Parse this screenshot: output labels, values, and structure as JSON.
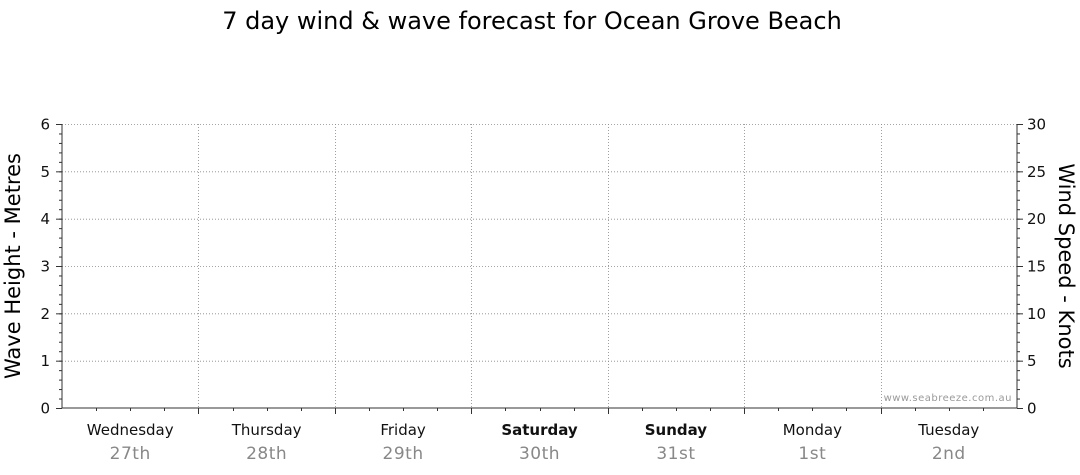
{
  "chart_data": {
    "type": "line",
    "title": "7 day wind & wave forecast for Ocean Grove Beach",
    "ylabel": "Wave Height - Metres",
    "y2label": "Wind Speed - Knots",
    "ylim": [
      0,
      6
    ],
    "y2lim": [
      0,
      30
    ],
    "y_ticks": [
      "0",
      "1",
      "2",
      "3",
      "4",
      "5",
      "6"
    ],
    "y2_ticks": [
      "0",
      "5",
      "10",
      "15",
      "20",
      "25",
      "30"
    ],
    "grid": true,
    "days": [
      {
        "name": "Wednesday",
        "date": "27th",
        "bold": false
      },
      {
        "name": "Thursday",
        "date": "28th",
        "bold": false
      },
      {
        "name": "Friday",
        "date": "29th",
        "bold": false
      },
      {
        "name": "Saturday",
        "date": "30th",
        "bold": true
      },
      {
        "name": "Sunday",
        "date": "31st",
        "bold": true
      },
      {
        "name": "Monday",
        "date": "1st",
        "bold": false
      },
      {
        "name": "Tuesday",
        "date": "2nd",
        "bold": false
      }
    ],
    "series": [],
    "watermark": "www.seabreeze.com.au"
  }
}
